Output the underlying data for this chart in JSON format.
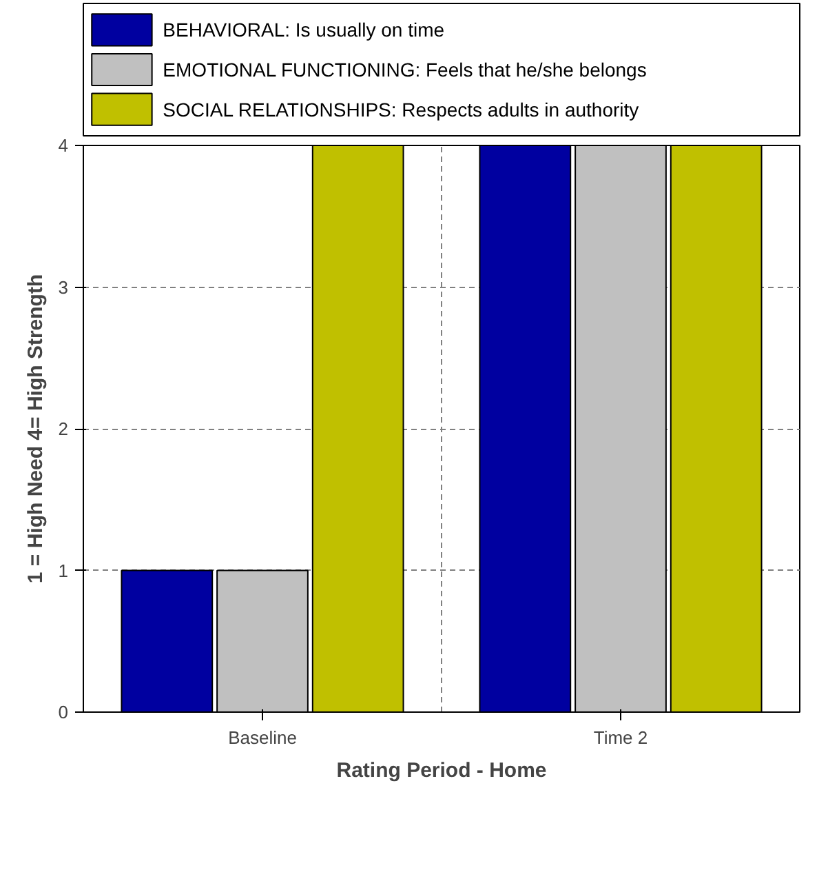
{
  "chart_data": {
    "type": "bar",
    "xlabel": "Rating Period - Home",
    "ylabel": "1 = High Need 4= High Strength",
    "categories": [
      "Baseline",
      "Time 2"
    ],
    "series": [
      {
        "name": "BEHAVIORAL: Is usually on time",
        "color": "#0000a0",
        "values": [
          1,
          4
        ]
      },
      {
        "name": "EMOTIONAL FUNCTIONING: Feels that he/she belongs",
        "color": "#c0c0c0",
        "values": [
          1,
          4
        ]
      },
      {
        "name": "SOCIAL RELATIONSHIPS: Respects adults in authority",
        "color": "#c0c000",
        "values": [
          4,
          4
        ]
      }
    ],
    "ylim": [
      0,
      4
    ],
    "yticks": [
      0,
      1,
      2,
      3,
      4
    ],
    "grid": true,
    "legend": "top"
  }
}
